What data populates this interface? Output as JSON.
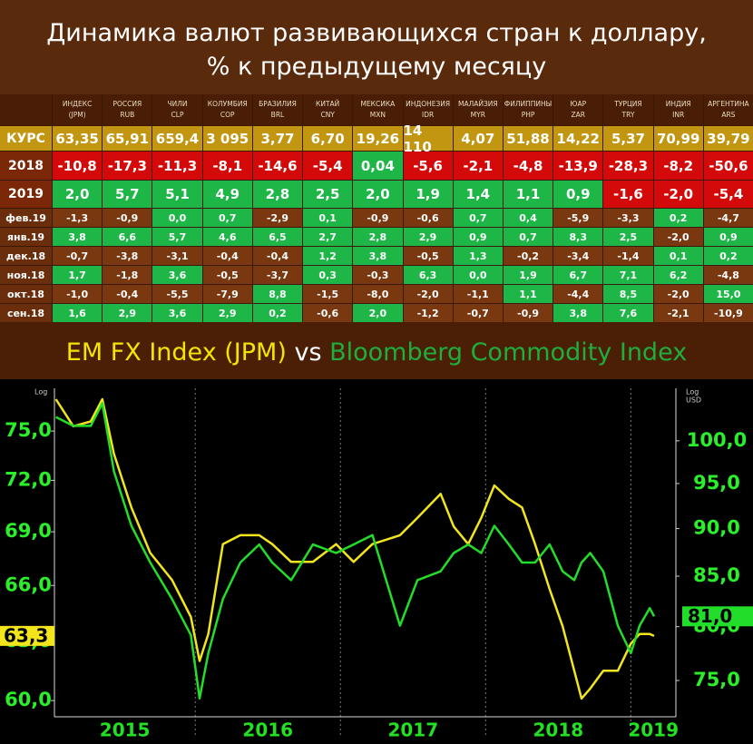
{
  "title": [
    "Динамика валют развивающихся стран к доллару,",
    "% к предыдущему месяцу"
  ],
  "table": {
    "columns": [
      {
        "name": "ИНДЕКС",
        "code": "(JPM)"
      },
      {
        "name": "РОССИЯ",
        "code": "RUB"
      },
      {
        "name": "ЧИЛИ",
        "code": "CLP"
      },
      {
        "name": "КОЛУМБИЯ",
        "code": "COP"
      },
      {
        "name": "БРАЗИЛИЯ",
        "code": "BRL"
      },
      {
        "name": "КИТАЙ",
        "code": "CNY"
      },
      {
        "name": "МЕКСИКА",
        "code": "MXN"
      },
      {
        "name": "ИНДОНЕЗИЯ",
        "code": "IDR"
      },
      {
        "name": "МАЛАЙЗИЯ",
        "code": "MYR"
      },
      {
        "name": "ФИЛИППИНЫ",
        "code": "PHP"
      },
      {
        "name": "ЮАР",
        "code": "ZAR"
      },
      {
        "name": "ТУРЦИЯ",
        "code": "TRY"
      },
      {
        "name": "ИНДИЯ",
        "code": "INR"
      },
      {
        "name": "АРГЕНТИНА",
        "code": "ARS"
      }
    ],
    "rows": [
      {
        "label": "КУРС",
        "cells": [
          "63,35",
          "65,91",
          "659,4",
          "3 095",
          "3,77",
          "6,70",
          "19,26",
          "14 110",
          "4,07",
          "51,88",
          "14,22",
          "5,37",
          "70,99",
          "39,79"
        ]
      },
      {
        "label": "2018",
        "cells": [
          "-10,8",
          "-17,3",
          "-11,3",
          "-8,1",
          "-14,6",
          "-5,4",
          "0,04",
          "-5,6",
          "-2,1",
          "-4,8",
          "-13,9",
          "-28,3",
          "-8,2",
          "-50,6"
        ]
      },
      {
        "label": "2019",
        "cells": [
          "2,0",
          "5,7",
          "5,1",
          "4,9",
          "2,8",
          "2,5",
          "2,0",
          "1,9",
          "1,4",
          "1,1",
          "0,9",
          "-1,6",
          "-2,0",
          "-5,4"
        ]
      },
      {
        "label": "фев.19",
        "cells": [
          "-1,3",
          "-0,9",
          "0,0",
          "0,7",
          "-2,9",
          "0,1",
          "-0,9",
          "-0,6",
          "0,7",
          "0,4",
          "-5,9",
          "-3,3",
          "0,2",
          "-4,7"
        ]
      },
      {
        "label": "янв.19",
        "cells": [
          "3,8",
          "6,6",
          "5,7",
          "4,6",
          "6,5",
          "2,7",
          "2,8",
          "2,9",
          "0,9",
          "0,7",
          "8,3",
          "2,5",
          "-2,0",
          "0,9"
        ]
      },
      {
        "label": "дек.18",
        "cells": [
          "-0,7",
          "-3,8",
          "-3,1",
          "-0,4",
          "-0,4",
          "1,2",
          "3,8",
          "-0,5",
          "1,3",
          "-0,2",
          "-3,4",
          "-1,4",
          "0,1",
          "0,2"
        ]
      },
      {
        "label": "ноя.18",
        "cells": [
          "1,7",
          "-1,8",
          "3,6",
          "-0,5",
          "-3,7",
          "0,3",
          "-0,3",
          "6,3",
          "0,0",
          "1,9",
          "6,7",
          "7,1",
          "6,2",
          "-4,8"
        ]
      },
      {
        "label": "окт.18",
        "cells": [
          "-1,0",
          "-0,4",
          "-5,5",
          "-7,9",
          "8,8",
          "-1,5",
          "-8,0",
          "-2,0",
          "-1,1",
          "1,1",
          "-4,4",
          "8,5",
          "-2,0",
          "15,0"
        ]
      },
      {
        "label": "сен.18",
        "cells": [
          "1,6",
          "2,9",
          "3,6",
          "2,9",
          "0,2",
          "-0,6",
          "2,0",
          "-1,2",
          "-0,7",
          "-0,9",
          "3,8",
          "7,6",
          "-2,1",
          "-10,9"
        ]
      }
    ]
  },
  "chart_data": {
    "type": "line",
    "title_connector": "vs",
    "y_axis_label": "Log",
    "y2_axis_label": [
      "Log",
      "USD"
    ],
    "log_scale": true,
    "x": [
      2015.04,
      2015.16,
      2015.28,
      2015.36,
      2015.44,
      2015.56,
      2015.69,
      2015.84,
      2015.97,
      2016.03,
      2016.09,
      2016.19,
      2016.31,
      2016.44,
      2016.53,
      2016.66,
      2016.81,
      2016.97,
      2017.09,
      2017.22,
      2017.41,
      2017.53,
      2017.69,
      2017.78,
      2017.88,
      2017.97,
      2018.06,
      2018.16,
      2018.25,
      2018.34,
      2018.44,
      2018.53,
      2018.61,
      2018.66,
      2018.72,
      2018.81,
      2018.91,
      2019.0,
      2019.06,
      2019.13,
      2019.16
    ],
    "xlim": [
      2015.03,
      2019.31
    ],
    "xticks": [
      2015,
      2016,
      2017,
      2018,
      2019
    ],
    "ylim": [
      59.2,
      77.7
    ],
    "yticks": [
      {
        "value": 60,
        "label": "60,0"
      },
      {
        "value": 63,
        "label": "63,0"
      },
      {
        "value": 66,
        "label": "66,0"
      },
      {
        "value": 69,
        "label": "69,0"
      },
      {
        "value": 72,
        "label": "72,0"
      },
      {
        "value": 75,
        "label": "75,0"
      }
    ],
    "y2lim": [
      71.8,
      106.5
    ],
    "y2ticks": [
      {
        "value": 75,
        "label": "75,0"
      },
      {
        "value": 80,
        "label": "80,0"
      },
      {
        "value": 85,
        "label": "85,0"
      },
      {
        "value": 90,
        "label": "90,0"
      },
      {
        "value": 95,
        "label": "95,0"
      },
      {
        "value": 100,
        "label": "100,0"
      }
    ],
    "series": [
      {
        "name": "EM FX Index (JPM)",
        "color": "#f2e51c",
        "axis": "y",
        "last_value_label": "63,3",
        "values": [
          77.0,
          75.3,
          75.6,
          77.0,
          73.6,
          70.4,
          67.8,
          66.3,
          64.3,
          62.0,
          63.4,
          68.3,
          68.8,
          68.8,
          68.3,
          67.3,
          67.3,
          68.3,
          67.3,
          68.3,
          68.8,
          69.8,
          71.2,
          69.3,
          68.3,
          69.8,
          71.7,
          70.9,
          70.4,
          68.3,
          65.8,
          63.8,
          61.5,
          60.1,
          60.6,
          61.5,
          61.5,
          62.9,
          63.4,
          63.4,
          63.3
        ]
      },
      {
        "name": "Bloomberg Commodity Index",
        "color": "#22dd2a",
        "axis": "y2",
        "last_value_label": "81,0",
        "values": [
          102.9,
          101.8,
          101.8,
          104.6,
          96.4,
          90.3,
          86.4,
          82.7,
          79.2,
          73.4,
          77.5,
          82.7,
          86.4,
          88.3,
          86.4,
          84.6,
          88.3,
          87.4,
          88.3,
          89.3,
          80.1,
          84.6,
          85.5,
          87.4,
          88.3,
          87.4,
          90.3,
          88.3,
          86.4,
          86.4,
          88.3,
          85.5,
          84.6,
          86.4,
          87.4,
          85.5,
          80.1,
          77.5,
          80.1,
          81.8,
          81.0
        ]
      }
    ]
  }
}
